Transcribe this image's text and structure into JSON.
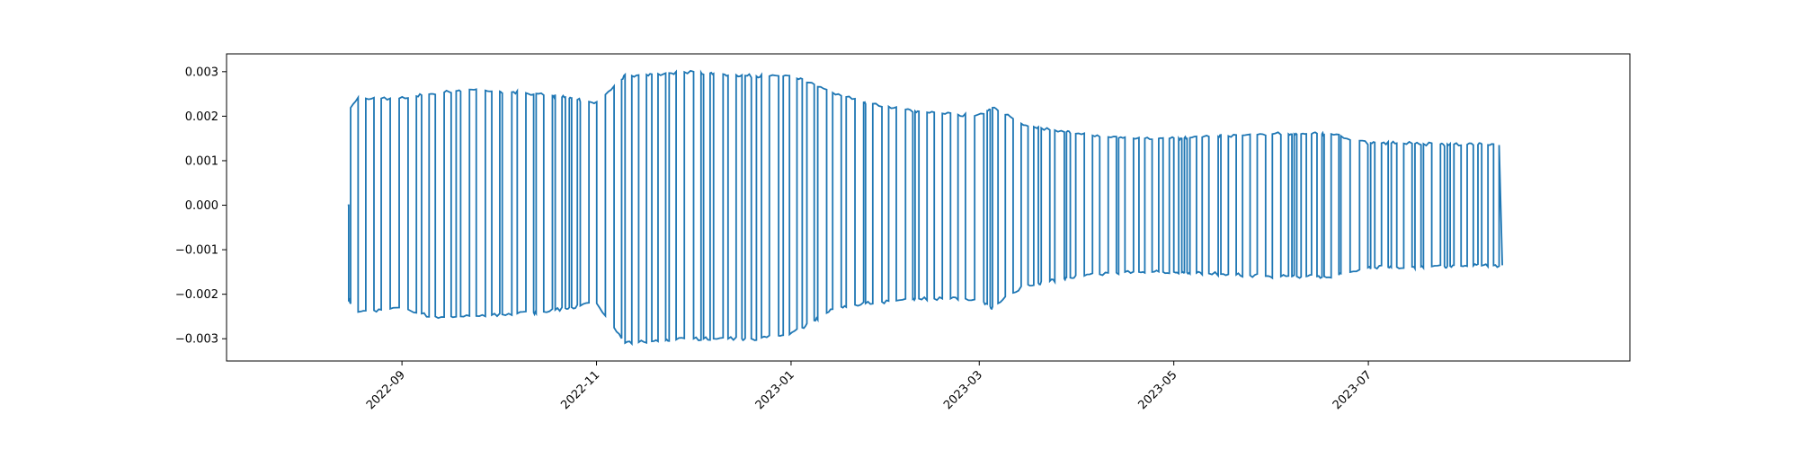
{
  "chart_data": {
    "type": "line",
    "title": "",
    "xlabel": "",
    "ylabel": "",
    "grid": false,
    "legend": "none",
    "series_color": "#1f77b4",
    "xlim": [
      "2022-07-08",
      "2023-09-21"
    ],
    "ylim": [
      -0.0035,
      0.0034
    ],
    "x_ticks": [
      {
        "date": "2022-09-01",
        "label": "2022-09"
      },
      {
        "date": "2022-11-01",
        "label": "2022-11"
      },
      {
        "date": "2023-01-01",
        "label": "2023-01"
      },
      {
        "date": "2023-03-01",
        "label": "2023-03"
      },
      {
        "date": "2023-05-01",
        "label": "2023-05"
      },
      {
        "date": "2023-07-01",
        "label": "2023-07"
      }
    ],
    "y_ticks": [
      {
        "value": 0.003,
        "label": "0.003"
      },
      {
        "value": 0.002,
        "label": "0.002"
      },
      {
        "value": 0.001,
        "label": "0.001"
      },
      {
        "value": 0.0,
        "label": "0.000"
      },
      {
        "value": -0.001,
        "label": "−0.001"
      },
      {
        "value": -0.002,
        "label": "−0.002"
      },
      {
        "value": -0.003,
        "label": "−0.003"
      }
    ],
    "series": [
      {
        "start": "2022-08-15",
        "end": "2023-08-12",
        "initial_value": 0.0,
        "final_value": -0.00135,
        "envelope": [
          {
            "date": "2022-08-15",
            "upper": 0.0021,
            "lower": -0.0021
          },
          {
            "date": "2022-08-18",
            "upper": 0.0024,
            "lower": -0.0024
          },
          {
            "date": "2022-09-01",
            "upper": 0.0024,
            "lower": -0.0023
          },
          {
            "date": "2022-09-10",
            "upper": 0.0025,
            "lower": -0.0025
          },
          {
            "date": "2022-09-22",
            "upper": 0.0026,
            "lower": -0.0025
          },
          {
            "date": "2022-10-15",
            "upper": 0.0025,
            "lower": -0.0024
          },
          {
            "date": "2022-11-01",
            "upper": 0.0023,
            "lower": -0.0022
          },
          {
            "date": "2022-11-10",
            "upper": 0.0029,
            "lower": -0.0031
          },
          {
            "date": "2022-11-30",
            "upper": 0.003,
            "lower": -0.003
          },
          {
            "date": "2022-12-20",
            "upper": 0.0029,
            "lower": -0.003
          },
          {
            "date": "2023-01-01",
            "upper": 0.0029,
            "lower": -0.0029
          },
          {
            "date": "2023-01-15",
            "upper": 0.0025,
            "lower": -0.0023
          },
          {
            "date": "2023-01-25",
            "upper": 0.0023,
            "lower": -0.0022
          },
          {
            "date": "2023-02-10",
            "upper": 0.0021,
            "lower": -0.0021
          },
          {
            "date": "2023-03-01",
            "upper": 0.002,
            "lower": -0.0021
          },
          {
            "date": "2023-03-05",
            "upper": 0.0022,
            "lower": -0.0023
          },
          {
            "date": "2023-03-15",
            "upper": 0.0018,
            "lower": -0.0018
          },
          {
            "date": "2023-04-01",
            "upper": 0.0016,
            "lower": -0.0016
          },
          {
            "date": "2023-04-15",
            "upper": 0.0015,
            "lower": -0.0015
          },
          {
            "date": "2023-05-01",
            "upper": 0.0015,
            "lower": -0.0015
          },
          {
            "date": "2023-06-01",
            "upper": 0.0016,
            "lower": -0.0016
          },
          {
            "date": "2023-06-20",
            "upper": 0.0016,
            "lower": -0.0016
          },
          {
            "date": "2023-07-01",
            "upper": 0.0014,
            "lower": -0.0014
          },
          {
            "date": "2023-08-12",
            "upper": 0.00135,
            "lower": -0.00135
          }
        ]
      }
    ]
  }
}
